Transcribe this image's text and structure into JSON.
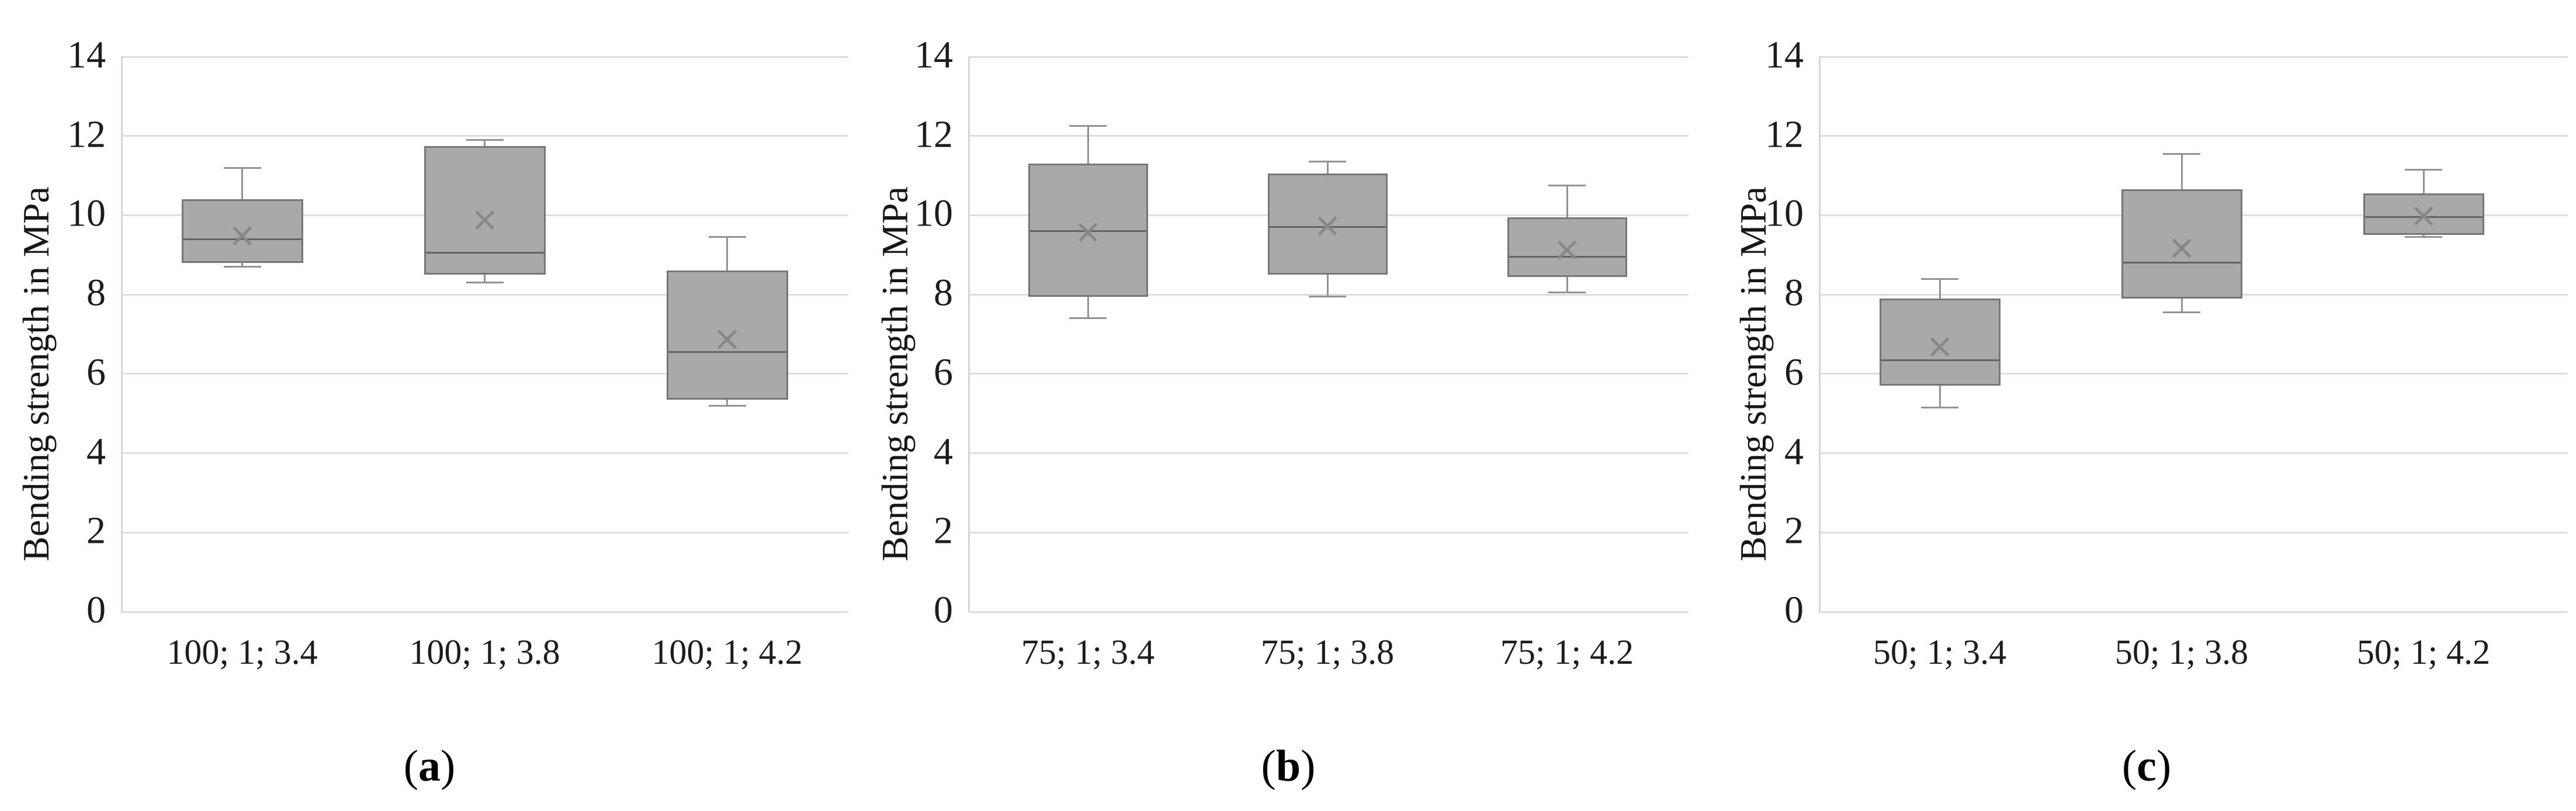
{
  "figure": {
    "background": "#ffffff",
    "text_color": "#1c1c1c"
  },
  "colors": {
    "box_fill": "#a9a9a9",
    "box_border": "#767676",
    "median_line": "#646464",
    "whisker": "#929292",
    "mean_marker": "#878787",
    "gridline": "#dedede",
    "axis_line": "#d6d6d6"
  },
  "chart_data": [
    {
      "type": "boxplot",
      "caption": {
        "open": "(",
        "letter": "a",
        "close": ")"
      },
      "ylabel": "Bending strength in MPa",
      "ylim": [
        0,
        14
      ],
      "yticks": [
        0,
        2,
        4,
        6,
        8,
        10,
        12,
        14
      ],
      "grid": true,
      "legend": "none",
      "categories": [
        "100; 1; 3.4",
        "100; 1; 3.8",
        "100; 1; 4.2"
      ],
      "series": [
        {
          "category": "100; 1; 3.4",
          "whisker_low": 8.7,
          "q1": 8.8,
          "median": 9.4,
          "mean": 9.5,
          "q3": 10.4,
          "whisker_high": 11.2
        },
        {
          "category": "100; 1; 3.8",
          "whisker_low": 8.3,
          "q1": 8.5,
          "median": 9.05,
          "mean": 9.9,
          "q3": 11.75,
          "whisker_high": 11.9
        },
        {
          "category": "100; 1; 4.2",
          "whisker_low": 5.2,
          "q1": 5.35,
          "median": 6.55,
          "mean": 6.9,
          "q3": 8.6,
          "whisker_high": 9.45
        }
      ]
    },
    {
      "type": "boxplot",
      "caption": {
        "open": "(",
        "letter": "b",
        "close": ")"
      },
      "ylabel": "Bending strength in MPa",
      "ylim": [
        0,
        14
      ],
      "yticks": [
        0,
        2,
        4,
        6,
        8,
        10,
        12,
        14
      ],
      "grid": true,
      "legend": "none",
      "categories": [
        "75; 1; 3.4",
        "75; 1; 3.8",
        "75; 1; 4.2"
      ],
      "series": [
        {
          "category": "75; 1; 3.4",
          "whisker_low": 7.4,
          "q1": 7.95,
          "median": 9.6,
          "mean": 9.6,
          "q3": 11.3,
          "whisker_high": 12.25
        },
        {
          "category": "75; 1; 3.8",
          "whisker_low": 7.95,
          "q1": 8.5,
          "median": 9.7,
          "mean": 9.75,
          "q3": 11.05,
          "whisker_high": 11.35
        },
        {
          "category": "75; 1; 4.2",
          "whisker_low": 8.05,
          "q1": 8.45,
          "median": 8.95,
          "mean": 9.15,
          "q3": 9.95,
          "whisker_high": 10.75
        }
      ]
    },
    {
      "type": "boxplot",
      "caption": {
        "open": "(",
        "letter": "c",
        "close": ")"
      },
      "ylabel": "Bending strength in MPa",
      "ylim": [
        0,
        14
      ],
      "yticks": [
        0,
        2,
        4,
        6,
        8,
        10,
        12,
        14
      ],
      "grid": true,
      "legend": "none",
      "categories": [
        "50; 1; 3.4",
        "50; 1; 3.8",
        "50; 1; 4.2"
      ],
      "series": [
        {
          "category": "50; 1; 3.4",
          "whisker_low": 5.15,
          "q1": 5.7,
          "median": 6.35,
          "mean": 6.7,
          "q3": 7.9,
          "whisker_high": 8.4
        },
        {
          "category": "50; 1; 3.8",
          "whisker_low": 7.55,
          "q1": 7.9,
          "median": 8.8,
          "mean": 9.2,
          "q3": 10.65,
          "whisker_high": 11.55
        },
        {
          "category": "50; 1; 4.2",
          "whisker_low": 9.45,
          "q1": 9.5,
          "median": 9.95,
          "mean": 10.0,
          "q3": 10.55,
          "whisker_high": 11.15
        }
      ]
    }
  ]
}
